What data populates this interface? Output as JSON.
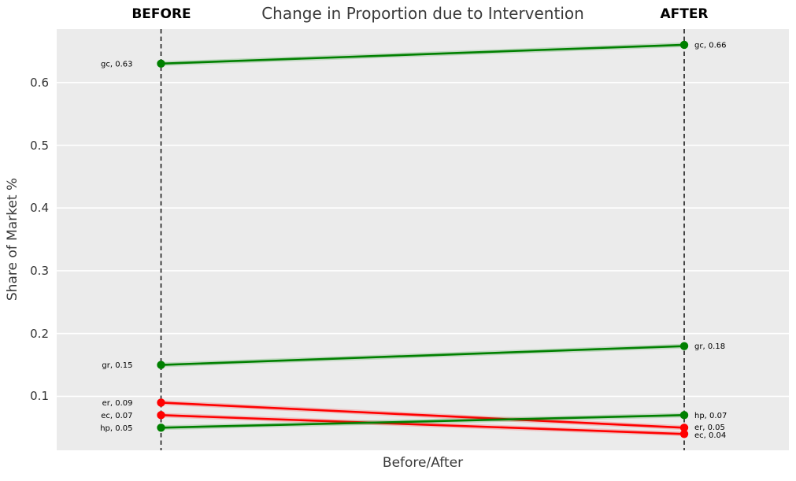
{
  "figure": {
    "title": "Change in Proportion due to Intervention",
    "before_header": "BEFORE",
    "after_header": "AFTER",
    "xlabel": "Before/After",
    "ylabel": "Share of Market %"
  },
  "chart_data": {
    "type": "line",
    "subtype": "slope-chart",
    "title": "Change in Proportion due to Intervention",
    "xlabel": "Before/After",
    "ylabel": "Share of Market %",
    "categories": [
      "BEFORE",
      "AFTER"
    ],
    "ylim": [
      0.014,
      0.685
    ],
    "yticks": [
      0.1,
      0.2,
      0.3,
      0.4,
      0.5,
      0.6
    ],
    "ytick_labels": [
      "0.1",
      "0.2",
      "0.3",
      "0.4",
      "0.5",
      "0.6"
    ],
    "grid": "horizontal white gridlines on gray plot background",
    "legend": "none",
    "series": [
      {
        "name": "gc",
        "values": [
          0.63,
          0.66
        ],
        "color": "#008000",
        "point_labels": [
          "gc, 0.63",
          "gc, 0.66"
        ]
      },
      {
        "name": "gr",
        "values": [
          0.15,
          0.18
        ],
        "color": "#008000",
        "point_labels": [
          "gr, 0.15",
          "gr, 0.18"
        ]
      },
      {
        "name": "er",
        "values": [
          0.09,
          0.05
        ],
        "color": "#ff0000",
        "point_labels": [
          "er, 0.09",
          "er, 0.05"
        ]
      },
      {
        "name": "ec",
        "values": [
          0.07,
          0.04
        ],
        "color": "#ff0000",
        "point_labels": [
          "ec, 0.07",
          "ec, 0.04"
        ]
      },
      {
        "name": "hp",
        "values": [
          0.05,
          0.07
        ],
        "color": "#008000",
        "point_labels": [
          "hp, 0.05",
          "hp, 0.07"
        ]
      }
    ],
    "colors": {
      "plot_background": "#ebebeb",
      "gridline": "#ffffff",
      "axis_line": "#000000",
      "increase": "#008000",
      "decrease": "#ff0000",
      "text": "#3a3a3a"
    }
  }
}
